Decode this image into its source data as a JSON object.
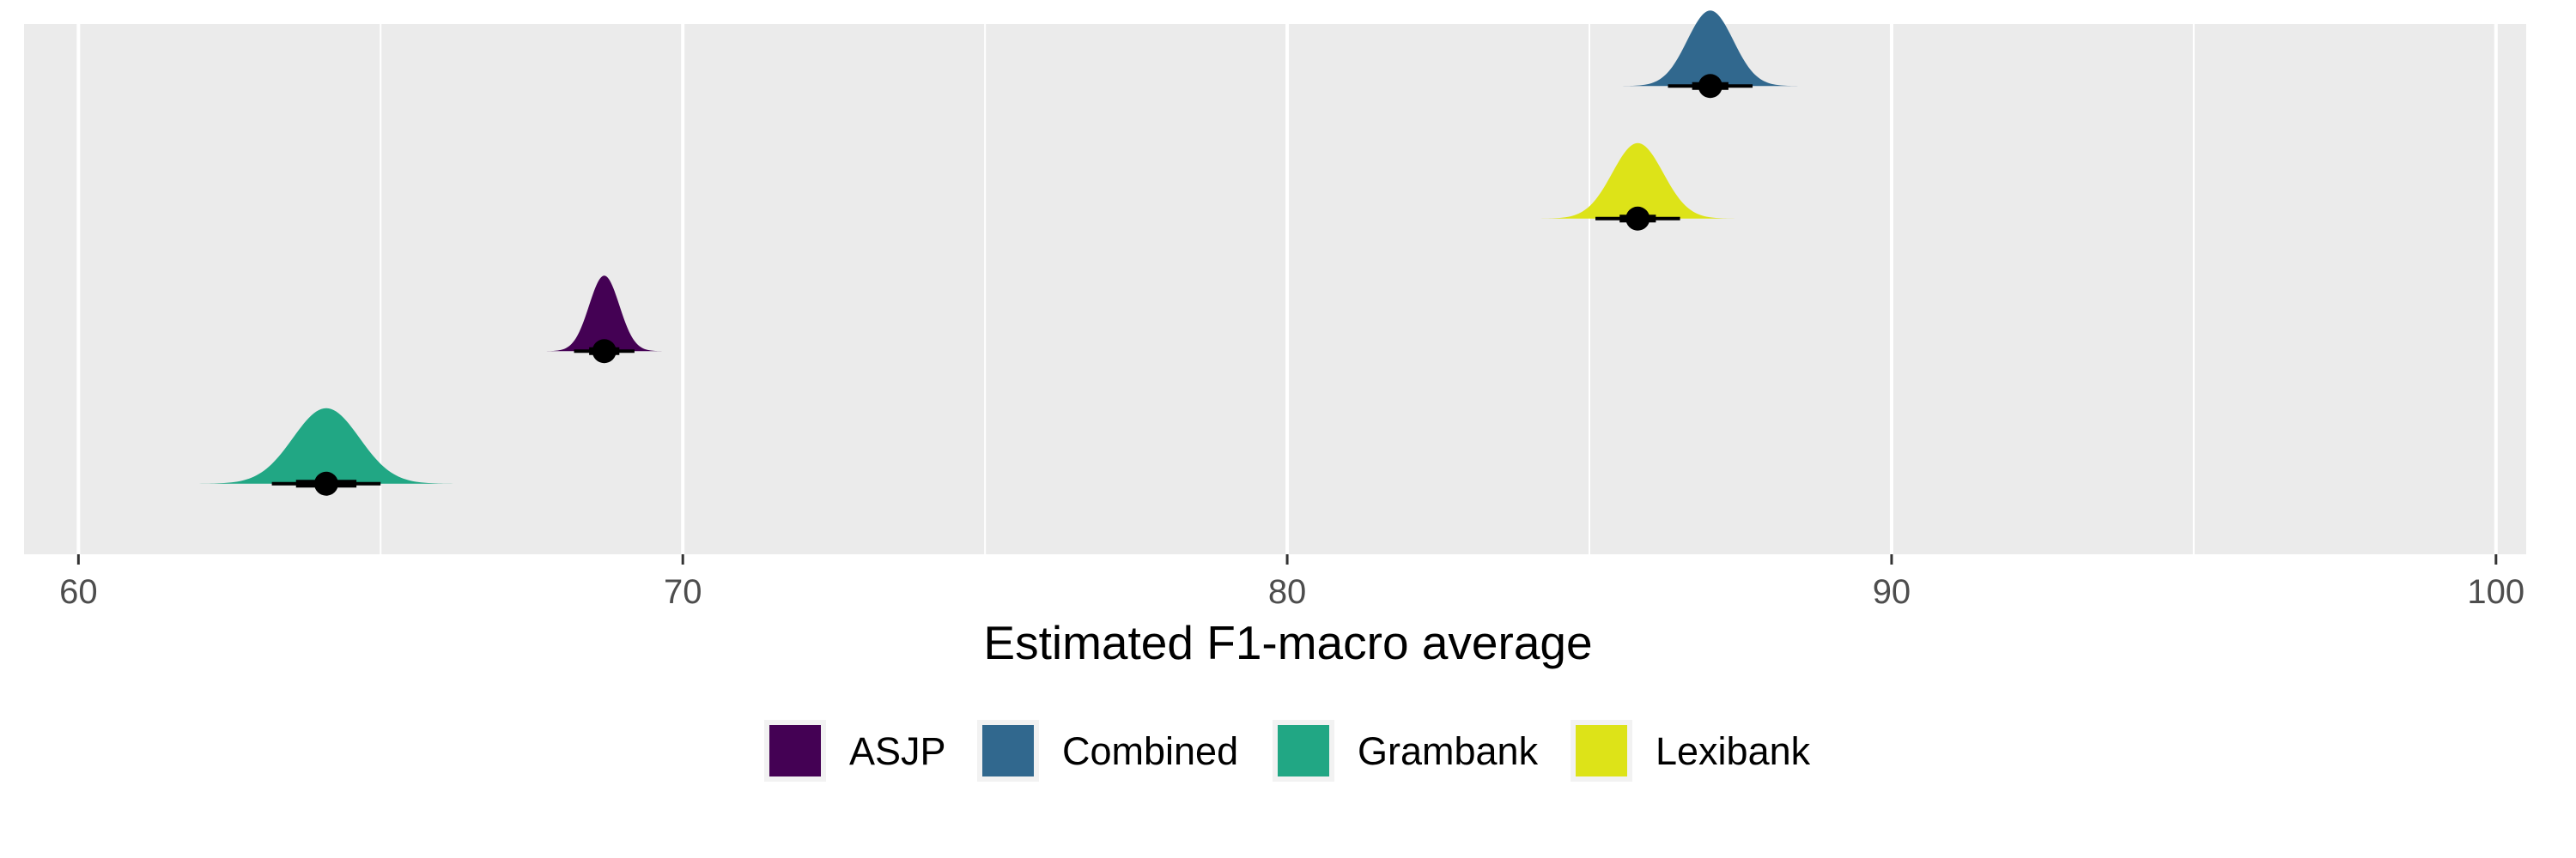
{
  "chart_data": {
    "type": "halfeye",
    "title": "",
    "xlabel": "Estimated F1-macro average",
    "ylabel": "",
    "xlim": [
      59.1,
      100.5
    ],
    "x_ticks": [
      60,
      70,
      80,
      90,
      100
    ],
    "x_minor_ticks": [
      65,
      75,
      85,
      95
    ],
    "y_axis_labels_shown": false,
    "grid": true,
    "legend_position": "bottom",
    "series": [
      {
        "name": "Grambank",
        "color": "#21A784",
        "median": 64.1,
        "sd": 0.55,
        "ci66": [
          63.6,
          64.6
        ],
        "ci95": [
          63.2,
          65.0
        ]
      },
      {
        "name": "ASJP",
        "color": "#440154",
        "median": 68.7,
        "sd": 0.25,
        "ci66": [
          68.45,
          68.95
        ],
        "ci95": [
          68.2,
          69.2
        ]
      },
      {
        "name": "Lexibank",
        "color": "#DDE318",
        "median": 85.8,
        "sd": 0.42,
        "ci66": [
          85.5,
          86.1
        ],
        "ci95": [
          85.1,
          86.5
        ]
      },
      {
        "name": "Combined",
        "color": "#31688E",
        "median": 87.0,
        "sd": 0.38,
        "ci66": [
          86.7,
          87.3
        ],
        "ci95": [
          86.3,
          87.7
        ]
      }
    ],
    "legend": [
      {
        "name": "ASJP",
        "color": "#440154"
      },
      {
        "name": "Combined",
        "color": "#31688E"
      },
      {
        "name": "Grambank",
        "color": "#21A784"
      },
      {
        "name": "Lexibank",
        "color": "#DDE318"
      }
    ]
  }
}
